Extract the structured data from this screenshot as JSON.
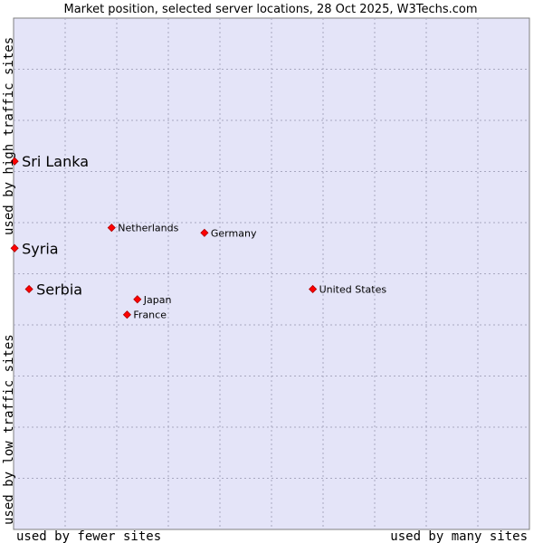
{
  "colors": {
    "plot_background": "#e4e4f8",
    "grid": "#a8a8c0",
    "border": "#7f7f7f",
    "point_fill": "#ff0000",
    "point_stroke": "#b00000"
  },
  "chart_data": {
    "type": "scatter",
    "title": "Market position, selected server locations, 28 Oct 2025, W3Techs.com",
    "xlabel_left": "used by fewer sites",
    "xlabel_right": "used by many sites",
    "ylabel_top": "used by high traffic sites",
    "ylabel_bottom": "used by low traffic sites",
    "xlim": [
      0,
      10
    ],
    "ylim": [
      0,
      10
    ],
    "grid": true,
    "x_gridlines": [
      1,
      2,
      3,
      4,
      5,
      6,
      7,
      8,
      9
    ],
    "y_gridlines": [
      1,
      2,
      3,
      4,
      5,
      6,
      7,
      8,
      9
    ],
    "highlighted": [
      {
        "name": "Sri Lanka",
        "x": 0.02,
        "y": 7.2
      },
      {
        "name": "Syria",
        "x": 0.02,
        "y": 5.5
      },
      {
        "name": "Serbia",
        "x": 0.3,
        "y": 4.7
      }
    ],
    "reference": [
      {
        "name": "Netherlands",
        "x": 1.9,
        "y": 5.9
      },
      {
        "name": "Germany",
        "x": 3.7,
        "y": 5.8
      },
      {
        "name": "United States",
        "x": 5.8,
        "y": 4.7
      },
      {
        "name": "Japan",
        "x": 2.4,
        "y": 4.5
      },
      {
        "name": "France",
        "x": 2.2,
        "y": 4.2
      }
    ]
  }
}
